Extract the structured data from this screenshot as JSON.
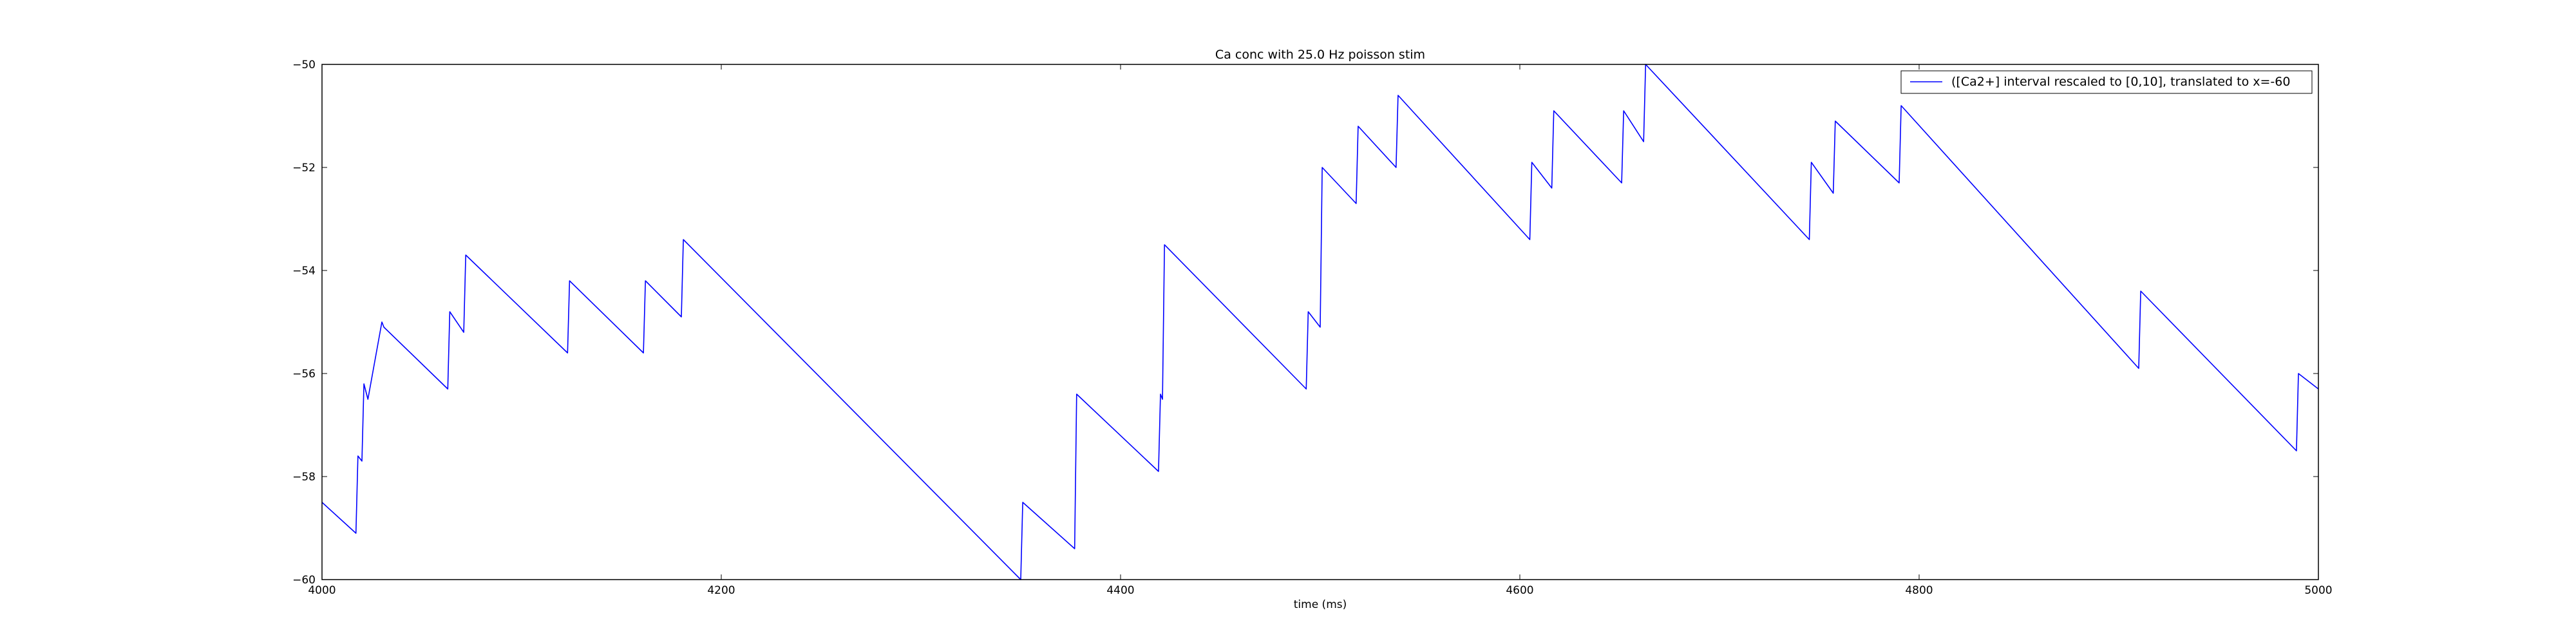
{
  "chart_data": {
    "type": "line",
    "title": "Ca conc with 25.0 Hz poisson stim",
    "xlabel": "time (ms)",
    "ylabel": "",
    "xlim": [
      4000,
      5000
    ],
    "ylim": [
      -60,
      -50
    ],
    "xticks": [
      "4000",
      "4200",
      "4400",
      "4600",
      "4800",
      "5000"
    ],
    "yticks": [
      "−60",
      "−58",
      "−56",
      "−54",
      "−52",
      "−50"
    ],
    "grid": false,
    "legend_position": "top-right",
    "series": [
      {
        "name": "([Ca2+] interval rescaled to [0,10], translated to x=-60",
        "color": "#0000ff",
        "x": [
          4000,
          4017,
          4018,
          4020,
          4021,
          4023,
          4030,
          4031,
          4063,
          4064,
          4071,
          4072,
          4123,
          4124,
          4161,
          4162,
          4180,
          4181,
          4350,
          4351,
          4377,
          4378,
          4419,
          4420,
          4421,
          4422,
          4493,
          4494,
          4500,
          4501,
          4518,
          4519,
          4538,
          4539,
          4605,
          4606,
          4616,
          4617,
          4651,
          4652,
          4662,
          4663,
          4745,
          4746,
          4757,
          4758,
          4790,
          4791,
          4910,
          4911,
          4989,
          4990,
          5000
        ],
        "y": [
          -58.5,
          -59.1,
          -57.6,
          -57.7,
          -56.2,
          -56.5,
          -55.0,
          -55.1,
          -56.3,
          -54.8,
          -55.2,
          -53.7,
          -55.6,
          -54.2,
          -55.6,
          -54.2,
          -54.9,
          -53.4,
          -60.0,
          -58.5,
          -59.4,
          -56.4,
          -57.9,
          -56.4,
          -56.5,
          -53.5,
          -56.3,
          -54.8,
          -55.1,
          -52.0,
          -52.7,
          -51.2,
          -52.0,
          -50.6,
          -53.4,
          -51.9,
          -52.4,
          -50.9,
          -52.3,
          -50.9,
          -51.5,
          -50.0,
          -53.4,
          -51.9,
          -52.5,
          -51.1,
          -52.3,
          -50.8,
          -55.9,
          -54.4,
          -57.5,
          -56.0,
          -56.3
        ]
      }
    ]
  }
}
